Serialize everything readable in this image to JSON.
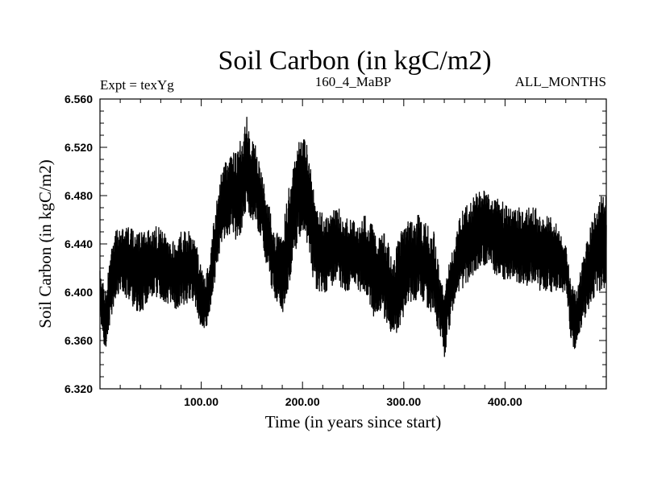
{
  "chart_data": {
    "type": "line",
    "title": "Soil Carbon (in kgC/m2)",
    "subtitle_left": "Expt = texYg",
    "subtitle_center": "160_4_MaBP",
    "subtitle_right": "ALL_MONTHS",
    "xlabel": "Time (in years since start)",
    "ylabel": "Soil Carbon (in kgC/m2)",
    "xlim": [
      0,
      500
    ],
    "ylim": [
      6.32,
      6.56
    ],
    "grid": false,
    "series_color": "#000000",
    "x_ticks": [
      {
        "value": 100,
        "label": "100.00"
      },
      {
        "value": 200,
        "label": "200.00"
      },
      {
        "value": 300,
        "label": "300.00"
      },
      {
        "value": 400,
        "label": "400.00"
      }
    ],
    "y_ticks": [
      {
        "value": 6.32,
        "label": "6.320"
      },
      {
        "value": 6.36,
        "label": "6.360"
      },
      {
        "value": 6.4,
        "label": "6.400"
      },
      {
        "value": 6.44,
        "label": "6.440"
      },
      {
        "value": 6.48,
        "label": "6.480"
      },
      {
        "value": 6.52,
        "label": "6.520"
      },
      {
        "value": 6.56,
        "label": "6.560"
      }
    ],
    "series": [
      {
        "x": [
          0,
          5,
          10,
          15,
          20,
          25,
          30,
          35,
          40,
          45,
          50,
          55,
          60,
          65,
          70,
          75,
          80,
          85,
          90,
          95,
          100,
          105,
          110,
          115,
          120,
          125,
          130,
          135,
          140,
          145,
          150,
          155,
          160,
          165,
          170,
          175,
          180,
          185,
          190,
          195,
          200,
          205,
          210,
          215,
          220,
          225,
          230,
          235,
          240,
          245,
          250,
          255,
          260,
          265,
          270,
          275,
          280,
          285,
          290,
          295,
          300,
          305,
          310,
          315,
          320,
          325,
          330,
          335,
          340,
          345,
          350,
          355,
          360,
          365,
          370,
          375,
          380,
          385,
          390,
          395,
          400,
          405,
          410,
          415,
          420,
          425,
          430,
          435,
          440,
          445,
          450,
          455,
          460,
          465,
          470,
          475,
          480,
          485,
          490,
          495,
          500
        ],
        "low": [
          6.38,
          6.35,
          6.375,
          6.395,
          6.4,
          6.395,
          6.39,
          6.385,
          6.38,
          6.39,
          6.39,
          6.395,
          6.395,
          6.39,
          6.39,
          6.385,
          6.39,
          6.39,
          6.395,
          6.385,
          6.37,
          6.37,
          6.385,
          6.42,
          6.44,
          6.445,
          6.45,
          6.44,
          6.45,
          6.465,
          6.46,
          6.45,
          6.44,
          6.42,
          6.4,
          6.39,
          6.38,
          6.4,
          6.42,
          6.44,
          6.45,
          6.44,
          6.41,
          6.4,
          6.4,
          6.4,
          6.405,
          6.41,
          6.4,
          6.4,
          6.4,
          6.395,
          6.4,
          6.395,
          6.38,
          6.38,
          6.38,
          6.37,
          6.36,
          6.37,
          6.38,
          6.39,
          6.39,
          6.395,
          6.39,
          6.385,
          6.38,
          6.365,
          6.345,
          6.37,
          6.39,
          6.4,
          6.405,
          6.41,
          6.415,
          6.42,
          6.42,
          6.42,
          6.415,
          6.41,
          6.41,
          6.41,
          6.41,
          6.405,
          6.405,
          6.405,
          6.41,
          6.4,
          6.4,
          6.4,
          6.4,
          6.4,
          6.4,
          6.36,
          6.35,
          6.37,
          6.38,
          6.39,
          6.4,
          6.4,
          6.4
        ],
        "high": [
          6.42,
          6.4,
          6.43,
          6.45,
          6.455,
          6.46,
          6.455,
          6.45,
          6.45,
          6.455,
          6.45,
          6.455,
          6.455,
          6.45,
          6.445,
          6.44,
          6.45,
          6.455,
          6.45,
          6.44,
          6.42,
          6.415,
          6.44,
          6.48,
          6.5,
          6.51,
          6.515,
          6.52,
          6.53,
          6.545,
          6.53,
          6.52,
          6.5,
          6.48,
          6.46,
          6.45,
          6.45,
          6.48,
          6.5,
          6.52,
          6.535,
          6.52,
          6.49,
          6.47,
          6.465,
          6.465,
          6.47,
          6.47,
          6.465,
          6.46,
          6.46,
          6.46,
          6.465,
          6.46,
          6.455,
          6.45,
          6.45,
          6.44,
          6.43,
          6.445,
          6.455,
          6.46,
          6.46,
          6.465,
          6.46,
          6.455,
          6.45,
          6.42,
          6.4,
          6.425,
          6.44,
          6.465,
          6.47,
          6.475,
          6.48,
          6.485,
          6.485,
          6.48,
          6.48,
          6.475,
          6.475,
          6.47,
          6.47,
          6.47,
          6.47,
          6.47,
          6.47,
          6.465,
          6.465,
          6.465,
          6.46,
          6.45,
          6.44,
          6.41,
          6.4,
          6.42,
          6.44,
          6.46,
          6.47,
          6.48,
          6.48
        ]
      }
    ]
  }
}
